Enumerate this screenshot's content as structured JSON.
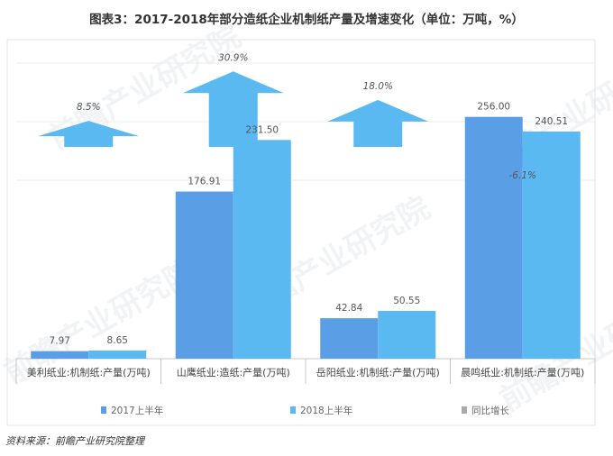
{
  "title": "图表3：2017-2018年部分造纸企业机制纸产量及增速变化（单位：万吨，%）",
  "source": "资料来源：前瞻产业研究院整理",
  "watermark": "前瞻产业研究院",
  "colors": {
    "s2017": "#5a9fe6",
    "s2018": "#5bb9f2",
    "arrow": "#5bb9f2",
    "axis": "#c9c9c9",
    "grid": "#eeeeee"
  },
  "chart_data": {
    "type": "bar",
    "categories": [
      "美利纸业:机制纸:产量(万吨)",
      "山鹰纸业:造纸:产量(万吨)",
      "岳阳纸业:机制纸:产量(万吨)",
      "晨鸣纸业:机制纸:产量(万吨)"
    ],
    "series": [
      {
        "name": "2017上半年",
        "values": [
          7.97,
          176.91,
          42.84,
          256.0
        ],
        "labels": [
          "7.97",
          "176.91",
          "42.84",
          "256.00"
        ]
      },
      {
        "name": "2018上半年",
        "values": [
          8.65,
          231.5,
          50.55,
          240.51
        ],
        "labels": [
          "8.65",
          "231.50",
          "50.55",
          "240.51"
        ]
      }
    ],
    "growth": {
      "values": [
        8.5,
        30.9,
        18.0,
        -6.1
      ],
      "labels": [
        "8.5%",
        "30.9%",
        "18.0%",
        "-6.1%"
      ]
    },
    "legend": [
      "2017上半年",
      "2018上半年",
      "同比增长"
    ],
    "ylim": [
      0,
      270
    ],
    "legend_position": "bottom"
  }
}
